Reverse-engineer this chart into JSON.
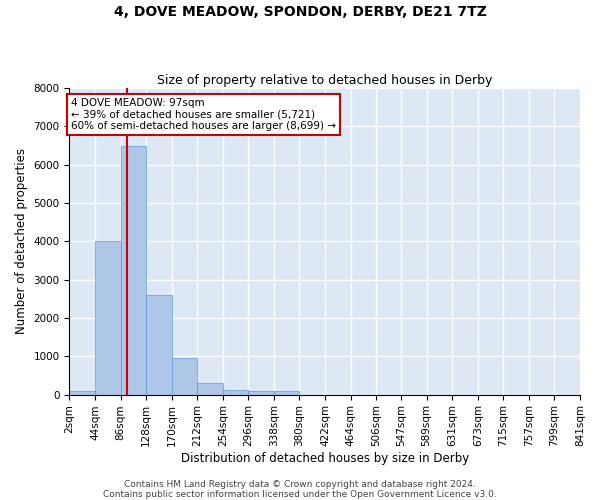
{
  "title": "4, DOVE MEADOW, SPONDON, DERBY, DE21 7TZ",
  "subtitle": "Size of property relative to detached houses in Derby",
  "xlabel": "Distribution of detached houses by size in Derby",
  "ylabel": "Number of detached properties",
  "bin_edges": [
    2,
    44,
    86,
    128,
    170,
    212,
    254,
    296,
    338,
    380,
    422,
    464,
    506,
    547,
    589,
    631,
    673,
    715,
    757,
    799,
    841
  ],
  "bar_heights": [
    100,
    4000,
    6500,
    2600,
    950,
    300,
    120,
    100,
    100,
    0,
    0,
    0,
    0,
    0,
    0,
    0,
    0,
    0,
    0,
    0
  ],
  "bar_color": "#aec6e8",
  "bar_edgecolor": "#5b9bd5",
  "vline_x": 97,
  "vline_color": "#cc0000",
  "annotation_text": "4 DOVE MEADOW: 97sqm\n← 39% of detached houses are smaller (5,721)\n60% of semi-detached houses are larger (8,699) →",
  "annotation_box_edgecolor": "#cc0000",
  "annotation_box_facecolor": "white",
  "ylim": [
    0,
    8000
  ],
  "yticks": [
    0,
    1000,
    2000,
    3000,
    4000,
    5000,
    6000,
    7000,
    8000
  ],
  "background_color": "#dde8f5",
  "grid_color": "white",
  "title_fontsize": 10,
  "subtitle_fontsize": 9,
  "xlabel_fontsize": 8.5,
  "ylabel_fontsize": 8.5,
  "tick_fontsize": 7.5,
  "annotation_fontsize": 7.5,
  "footer_text": "Contains HM Land Registry data © Crown copyright and database right 2024.\nContains public sector information licensed under the Open Government Licence v3.0.",
  "footer_fontsize": 6.5
}
